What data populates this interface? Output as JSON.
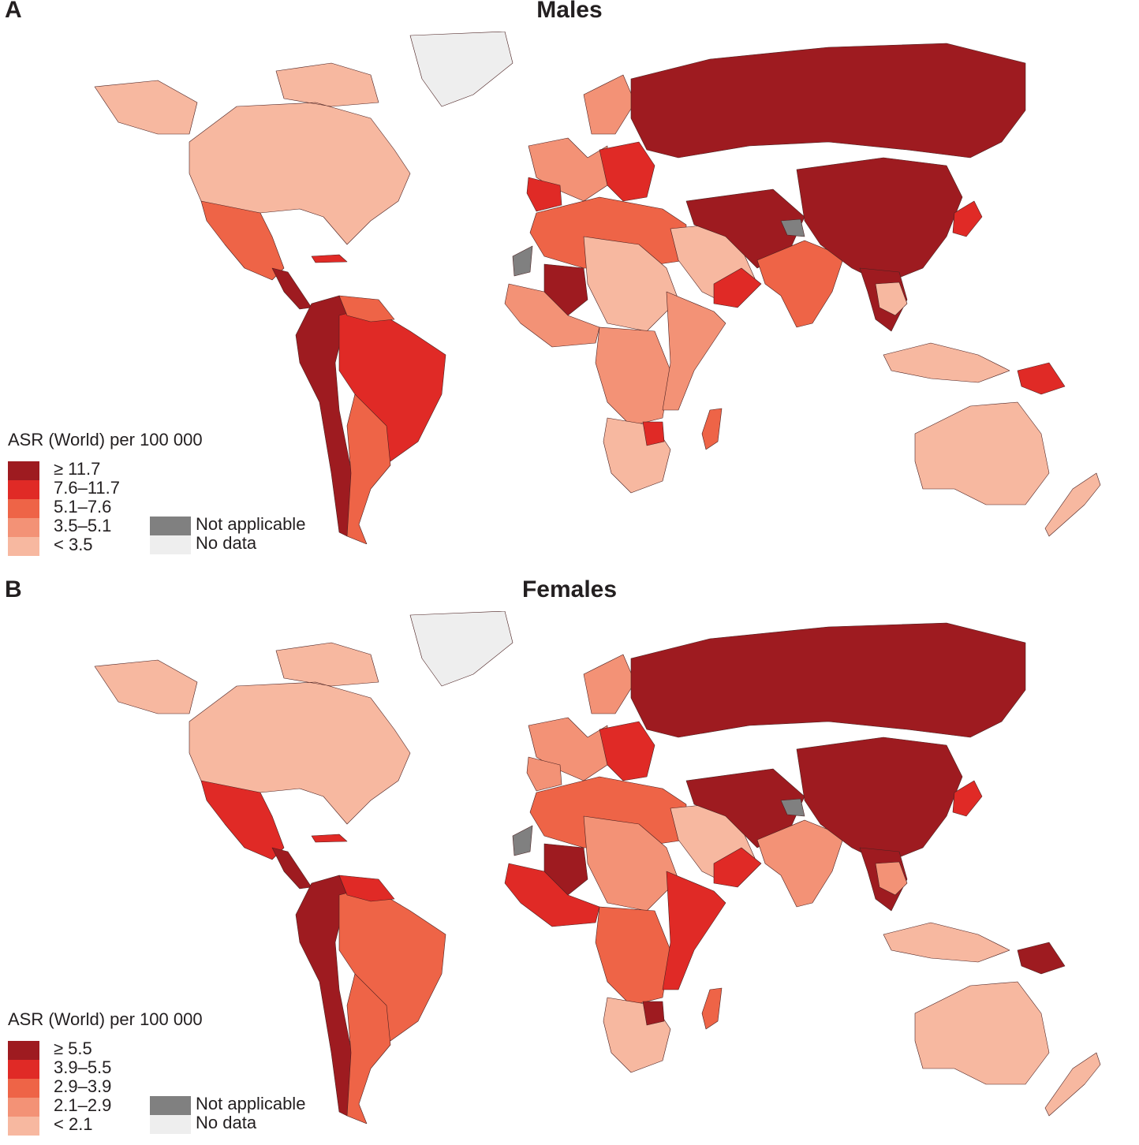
{
  "panels": [
    {
      "letter": "A",
      "title": "Males",
      "legend_title": "ASR (World) per 100 000",
      "classes": [
        {
          "label": "≥ 11.7",
          "color": "#9e1b20"
        },
        {
          "label": "7.6–11.7",
          "color": "#e02a26"
        },
        {
          "label": "5.1–7.6",
          "color": "#ee6447"
        },
        {
          "label": "3.5–5.1",
          "color": "#f39276"
        },
        {
          "label": "< 3.5",
          "color": "#f7b8a0"
        }
      ],
      "extra": [
        {
          "label": "Not applicable",
          "color": "#808080"
        },
        {
          "label": "No data",
          "color": "#eeeeee"
        }
      ],
      "region_classes": {
        "north_america": 4,
        "greenland": "nodata",
        "mexico": 2,
        "central_america": 0,
        "caribbean": 1,
        "andes": 0,
        "brazil": 1,
        "southern_cone": 2,
        "guyana_region": 2,
        "russia_east": 0,
        "western_europe": 3,
        "eastern_europe": 1,
        "spain": 1,
        "north_africa": 2,
        "sahel": 4,
        "west_africa": 3,
        "mali": 0,
        "central_africa": 3,
        "east_africa": 3,
        "southern_africa": 4,
        "zimbabwe": 1,
        "madagascar": 2,
        "arabia": 4,
        "yemen_oman": 1,
        "iran_central_asia": 0,
        "india": 2,
        "china": 0,
        "southeast_asia": 0,
        "thailand": 4,
        "indonesia": 4,
        "png": 1,
        "japan": 1,
        "australia": 4,
        "new_zealand": 4,
        "kashmir": "na",
        "western_sahara": "na"
      }
    },
    {
      "letter": "B",
      "title": "Females",
      "legend_title": "ASR (World) per 100 000",
      "classes": [
        {
          "label": "≥ 5.5",
          "color": "#9e1b20"
        },
        {
          "label": "3.9–5.5",
          "color": "#e02a26"
        },
        {
          "label": "2.9–3.9",
          "color": "#ee6447"
        },
        {
          "label": "2.1–2.9",
          "color": "#f39276"
        },
        {
          "label": "< 2.1",
          "color": "#f7b8a0"
        }
      ],
      "extra": [
        {
          "label": "Not applicable",
          "color": "#808080"
        },
        {
          "label": "No data",
          "color": "#eeeeee"
        }
      ],
      "region_classes": {
        "north_america": 4,
        "greenland": "nodata",
        "mexico": 1,
        "central_america": 0,
        "caribbean": 1,
        "andes": 0,
        "brazil": 2,
        "southern_cone": 2,
        "guyana_region": 1,
        "russia_east": 0,
        "western_europe": 3,
        "eastern_europe": 1,
        "spain": 3,
        "north_africa": 2,
        "sahel": 3,
        "west_africa": 1,
        "mali": 0,
        "central_africa": 2,
        "east_africa": 1,
        "southern_africa": 4,
        "zimbabwe": 0,
        "madagascar": 2,
        "arabia": 4,
        "yemen_oman": 1,
        "iran_central_asia": 0,
        "india": 3,
        "china": 0,
        "southeast_asia": 0,
        "thailand": 3,
        "indonesia": 4,
        "png": 0,
        "japan": 1,
        "australia": 4,
        "new_zealand": 4,
        "kashmir": "na",
        "western_sahara": "na"
      }
    }
  ]
}
